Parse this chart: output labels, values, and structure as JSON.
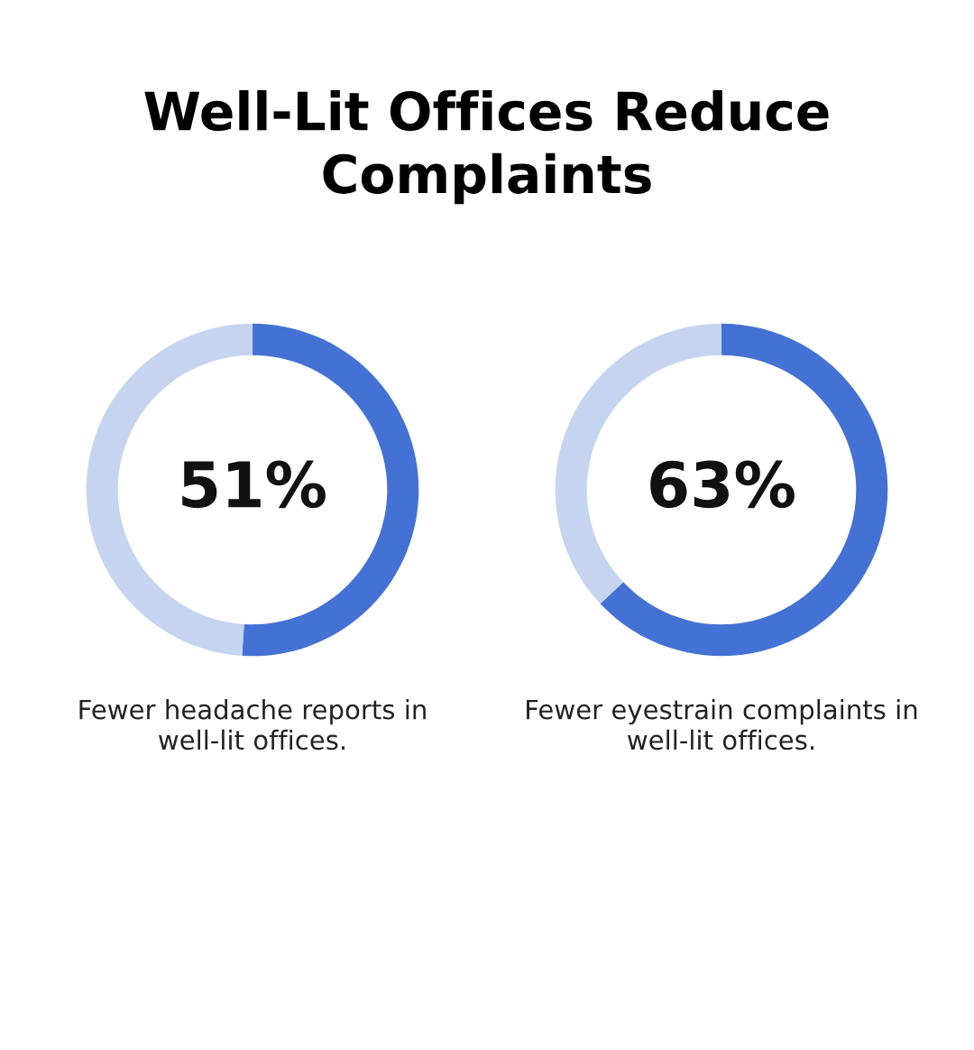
{
  "chart_data": [
    {
      "type": "donut",
      "title": "Well-Lit Offices Reduce Complaints",
      "categories": [
        null,
        null
      ],
      "values": [
        51,
        49
      ],
      "colors": [
        "#4472d4",
        "#c5d5f0"
      ],
      "value_labels": [
        "51%",
        null
      ],
      "annotations": [
        "Fewer headache reports in well-lit offices."
      ]
    },
    {
      "type": "donut",
      "categories": [
        null,
        null
      ],
      "values": [
        63,
        37
      ],
      "colors": [
        "#4472d4",
        "#c5d5f0"
      ],
      "value_labels": [
        "63%",
        null
      ],
      "annotations": [
        "Fewer eyestrain complaints in well-lit offices."
      ]
    }
  ]
}
